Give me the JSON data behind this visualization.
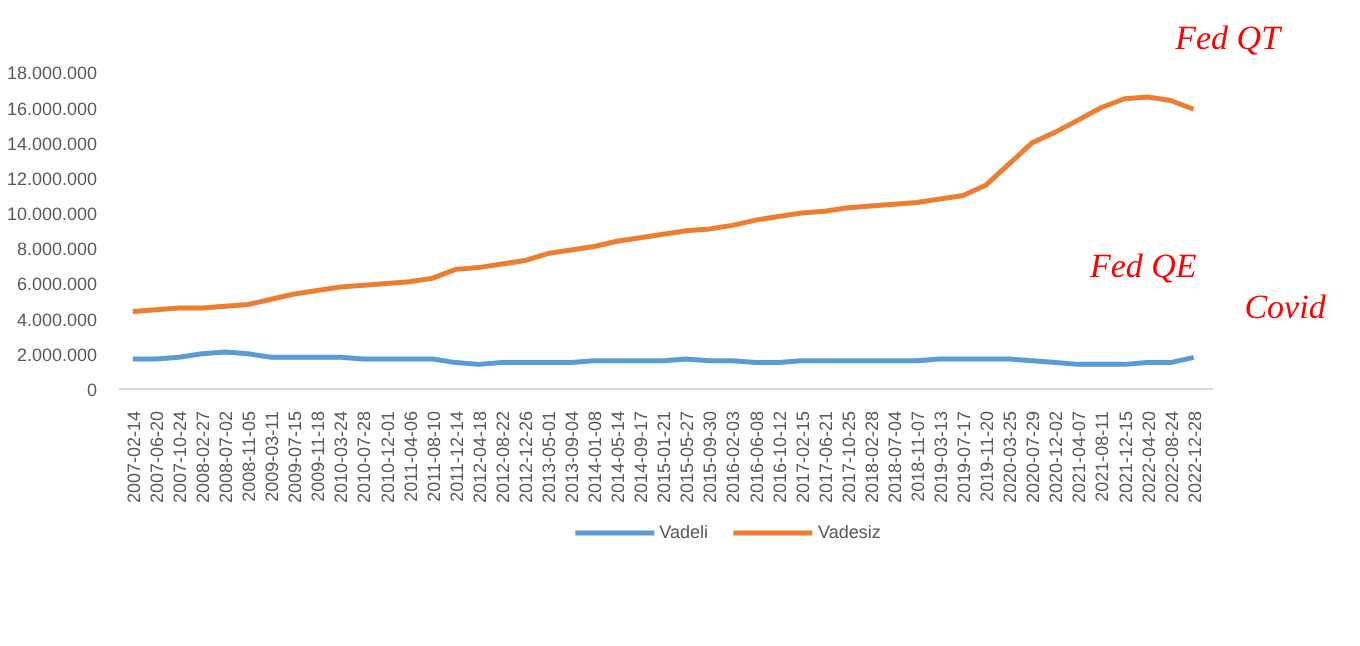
{
  "chart_data": {
    "type": "line",
    "categories": [
      "2007-02-14",
      "2007-06-20",
      "2007-10-24",
      "2008-02-27",
      "2008-07-02",
      "2008-11-05",
      "2009-03-11",
      "2009-07-15",
      "2009-11-18",
      "2010-03-24",
      "2010-07-28",
      "2010-12-01",
      "2011-04-06",
      "2011-08-10",
      "2011-12-14",
      "2012-04-18",
      "2012-08-22",
      "2012-12-26",
      "2013-05-01",
      "2013-09-04",
      "2014-01-08",
      "2014-05-14",
      "2014-09-17",
      "2015-01-21",
      "2015-05-27",
      "2015-09-30",
      "2016-02-03",
      "2016-06-08",
      "2016-10-12",
      "2017-02-15",
      "2017-06-21",
      "2017-10-25",
      "2018-02-28",
      "2018-07-04",
      "2018-11-07",
      "2019-03-13",
      "2019-07-17",
      "2019-11-20",
      "2020-03-25",
      "2020-07-29",
      "2020-12-02",
      "2021-04-07",
      "2021-08-11",
      "2021-12-15",
      "2022-04-20",
      "2022-08-24",
      "2022-12-28"
    ],
    "series": [
      {
        "name": "Vadeli",
        "color": "#5b9bd5",
        "values": [
          1700000,
          1700000,
          1800000,
          2000000,
          2100000,
          2000000,
          1800000,
          1800000,
          1800000,
          1800000,
          1700000,
          1700000,
          1700000,
          1700000,
          1500000,
          1400000,
          1500000,
          1500000,
          1500000,
          1500000,
          1600000,
          1600000,
          1600000,
          1600000,
          1700000,
          1600000,
          1600000,
          1500000,
          1500000,
          1600000,
          1600000,
          1600000,
          1600000,
          1600000,
          1600000,
          1700000,
          1700000,
          1700000,
          1700000,
          1600000,
          1500000,
          1400000,
          1400000,
          1400000,
          1500000,
          1500000,
          1800000
        ]
      },
      {
        "name": "Vadesiz",
        "color": "#ed7d31",
        "values": [
          4400000,
          4500000,
          4600000,
          4600000,
          4700000,
          4800000,
          5100000,
          5400000,
          5600000,
          5800000,
          5900000,
          6000000,
          6100000,
          6300000,
          6800000,
          6900000,
          7100000,
          7300000,
          7700000,
          7900000,
          8100000,
          8400000,
          8600000,
          8800000,
          9000000,
          9100000,
          9300000,
          9600000,
          9800000,
          10000000,
          10100000,
          10300000,
          10400000,
          10500000,
          10600000,
          10800000,
          11000000,
          11600000,
          12800000,
          14000000,
          14600000,
          15300000,
          16000000,
          16500000,
          16600000,
          16400000,
          15900000
        ]
      }
    ],
    "ylim": [
      0,
      18000000
    ],
    "yticks": [
      {
        "value": 0,
        "label": "0"
      },
      {
        "value": 2000000,
        "label": "2.000.000"
      },
      {
        "value": 4000000,
        "label": "4.000.000"
      },
      {
        "value": 6000000,
        "label": "6.000.000"
      },
      {
        "value": 8000000,
        "label": "8.000.000"
      },
      {
        "value": 10000000,
        "label": "10.000.000"
      },
      {
        "value": 12000000,
        "label": "12.000.000"
      },
      {
        "value": 14000000,
        "label": "14.000.000"
      },
      {
        "value": 16000000,
        "label": "16.000.000"
      },
      {
        "value": 18000000,
        "label": "18.000.000"
      }
    ],
    "annotations": [
      "Fed QT",
      "Fed QE",
      "Covid"
    ],
    "grid": false,
    "legend": "bottom",
    "marker": "none",
    "line_style": "solid"
  }
}
